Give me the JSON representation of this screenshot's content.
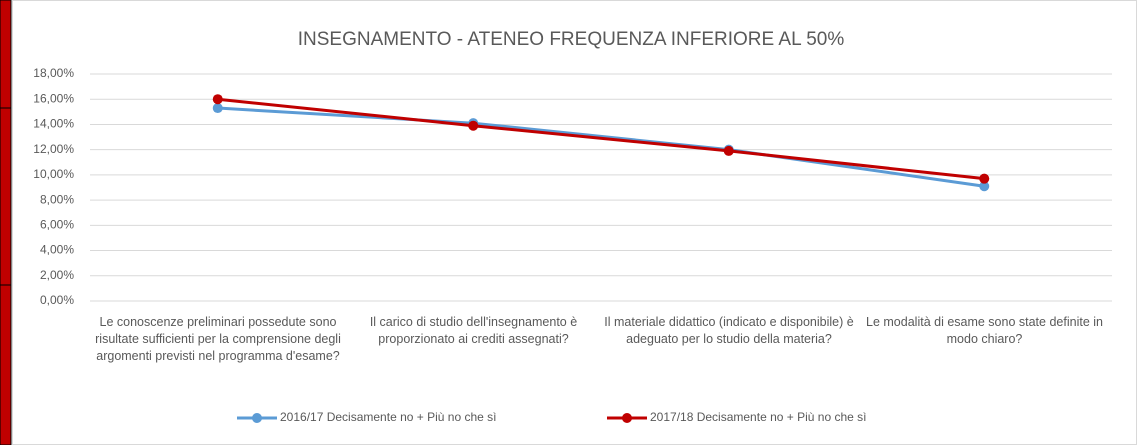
{
  "chart_data": {
    "type": "line",
    "title": "INSEGNAMENTO - ATENEO FREQUENZA INFERIORE AL 50%",
    "categories": [
      "Le conoscenze preliminari possedute sono risultate sufficienti per la comprensione degli argomenti previsti nel programma d'esame?",
      "Il carico di studio dell'insegnamento è proporzionato ai crediti assegnati?",
      "Il materiale didattico (indicato e disponibile) è adeguato per lo studio della materia?",
      "Le modalità di esame sono state definite in modo chiaro?"
    ],
    "series": [
      {
        "name": "2016/17 Decisamente no + Più no che sì",
        "color": "#5b9bd5",
        "values": [
          15.3,
          14.1,
          12.0,
          9.1
        ]
      },
      {
        "name": "2017/18 Decisamente no + Più no che sì",
        "color": "#c00000",
        "values": [
          16.0,
          13.9,
          11.9,
          9.7
        ]
      }
    ],
    "ylim": [
      0,
      18
    ],
    "yticks": [
      {
        "value": 0,
        "label": "0,00%"
      },
      {
        "value": 2,
        "label": "2,00%"
      },
      {
        "value": 4,
        "label": "4,00%"
      },
      {
        "value": 6,
        "label": "6,00%"
      },
      {
        "value": 8,
        "label": "8,00%"
      },
      {
        "value": 10,
        "label": "10,00%"
      },
      {
        "value": 12,
        "label": "12,00%"
      },
      {
        "value": 14,
        "label": "14,00%"
      },
      {
        "value": 16,
        "label": "16,00%"
      },
      {
        "value": 18,
        "label": "18,00%"
      }
    ],
    "grid": true,
    "legend": "bottom"
  }
}
